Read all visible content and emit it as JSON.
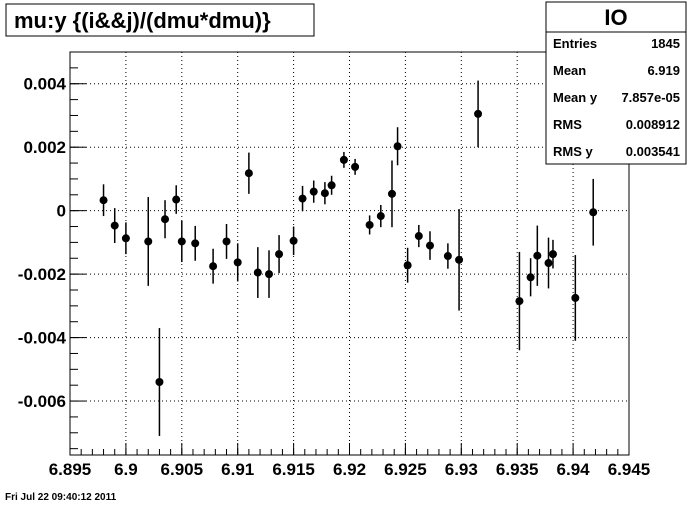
{
  "chart_data": {
    "type": "scatter",
    "title": "mu:y {(i&&j)/(dmu*dmu)}",
    "xlim": [
      6.895,
      6.945
    ],
    "ylim": [
      -0.0077,
      0.005
    ],
    "x_ticks": [
      {
        "value": 6.895,
        "label": "6.895"
      },
      {
        "value": 6.9,
        "label": "6.9"
      },
      {
        "value": 6.905,
        "label": "6.905"
      },
      {
        "value": 6.91,
        "label": "6.91"
      },
      {
        "value": 6.915,
        "label": "6.915"
      },
      {
        "value": 6.92,
        "label": "6.92"
      },
      {
        "value": 6.925,
        "label": "6.925"
      },
      {
        "value": 6.93,
        "label": "6.93"
      },
      {
        "value": 6.935,
        "label": "6.935"
      },
      {
        "value": 6.94,
        "label": "6.94"
      },
      {
        "value": 6.945,
        "label": "6.945"
      }
    ],
    "y_ticks": [
      {
        "value": 0.004,
        "label": "0.004"
      },
      {
        "value": 0.002,
        "label": "0.002"
      },
      {
        "value": 0,
        "label": "0"
      },
      {
        "value": -0.002,
        "label": "-0.002"
      },
      {
        "value": -0.004,
        "label": "-0.004"
      },
      {
        "value": -0.006,
        "label": "-0.006"
      }
    ],
    "grid": true,
    "points": [
      {
        "x": 6.898,
        "y": 0.00033,
        "err": 0.0005
      },
      {
        "x": 6.899,
        "y": -0.00047,
        "err": 0.00055
      },
      {
        "x": 6.9,
        "y": -0.00087,
        "err": 0.0005
      },
      {
        "x": 6.902,
        "y": -0.00097,
        "err": 0.0014
      },
      {
        "x": 6.903,
        "y": -0.0054,
        "err": 0.0017
      },
      {
        "x": 6.9035,
        "y": -0.00027,
        "err": 0.0006
      },
      {
        "x": 6.9045,
        "y": 0.00035,
        "err": 0.00045
      },
      {
        "x": 6.905,
        "y": -0.00097,
        "err": 0.00065
      },
      {
        "x": 6.9062,
        "y": -0.00103,
        "err": 0.00055
      },
      {
        "x": 6.9078,
        "y": -0.00175,
        "err": 0.00055
      },
      {
        "x": 6.909,
        "y": -0.00097,
        "err": 0.00055
      },
      {
        "x": 6.91,
        "y": -0.00163,
        "err": 0.0006
      },
      {
        "x": 6.911,
        "y": 0.00118,
        "err": 0.00065
      },
      {
        "x": 6.9118,
        "y": -0.00195,
        "err": 0.0008
      },
      {
        "x": 6.9128,
        "y": -0.002,
        "err": 0.00075
      },
      {
        "x": 6.9137,
        "y": -0.00137,
        "err": 0.0006
      },
      {
        "x": 6.915,
        "y": -0.00095,
        "err": 0.00045
      },
      {
        "x": 6.9158,
        "y": 0.00038,
        "err": 0.0004
      },
      {
        "x": 6.9168,
        "y": 0.0006,
        "err": 0.00035
      },
      {
        "x": 6.9178,
        "y": 0.00055,
        "err": 0.00035
      },
      {
        "x": 6.9184,
        "y": 0.0008,
        "err": 0.0003
      },
      {
        "x": 6.9195,
        "y": 0.0016,
        "err": 0.00025
      },
      {
        "x": 6.9205,
        "y": 0.00138,
        "err": 0.00025
      },
      {
        "x": 6.9218,
        "y": -0.00045,
        "err": 0.0003
      },
      {
        "x": 6.9228,
        "y": -0.00017,
        "err": 0.00035
      },
      {
        "x": 6.9238,
        "y": 0.00053,
        "err": 0.00105
      },
      {
        "x": 6.9243,
        "y": 0.00203,
        "err": 0.0006
      },
      {
        "x": 6.9252,
        "y": -0.00172,
        "err": 0.00055
      },
      {
        "x": 6.9262,
        "y": -0.0008,
        "err": 0.00035
      },
      {
        "x": 6.9272,
        "y": -0.0011,
        "err": 0.00045
      },
      {
        "x": 6.9288,
        "y": -0.00143,
        "err": 0.0004
      },
      {
        "x": 6.9298,
        "y": -0.00155,
        "err": 0.0016
      },
      {
        "x": 6.9315,
        "y": 0.00305,
        "err": 0.00105
      },
      {
        "x": 6.9352,
        "y": -0.00285,
        "err": 0.00155
      },
      {
        "x": 6.9362,
        "y": -0.0021,
        "err": 0.0006
      },
      {
        "x": 6.9368,
        "y": -0.00142,
        "err": 0.00095
      },
      {
        "x": 6.9378,
        "y": -0.00165,
        "err": 0.0008
      },
      {
        "x": 6.9382,
        "y": -0.00137,
        "err": 0.00045
      },
      {
        "x": 6.9402,
        "y": -0.00275,
        "err": 0.00135
      },
      {
        "x": 6.9418,
        "y": -5e-05,
        "err": 0.00105
      }
    ]
  },
  "stats": {
    "title": "IO",
    "rows": [
      {
        "label": "Entries",
        "value": "1845"
      },
      {
        "label": "Mean",
        "value": "6.919"
      },
      {
        "label": "Mean y",
        "value": "7.857e-05"
      },
      {
        "label": "RMS",
        "value": "0.008912"
      },
      {
        "label": "RMS y",
        "value": "0.003541"
      }
    ]
  },
  "footer": {
    "date": "Fri Jul 22 09:40:12 2011"
  }
}
